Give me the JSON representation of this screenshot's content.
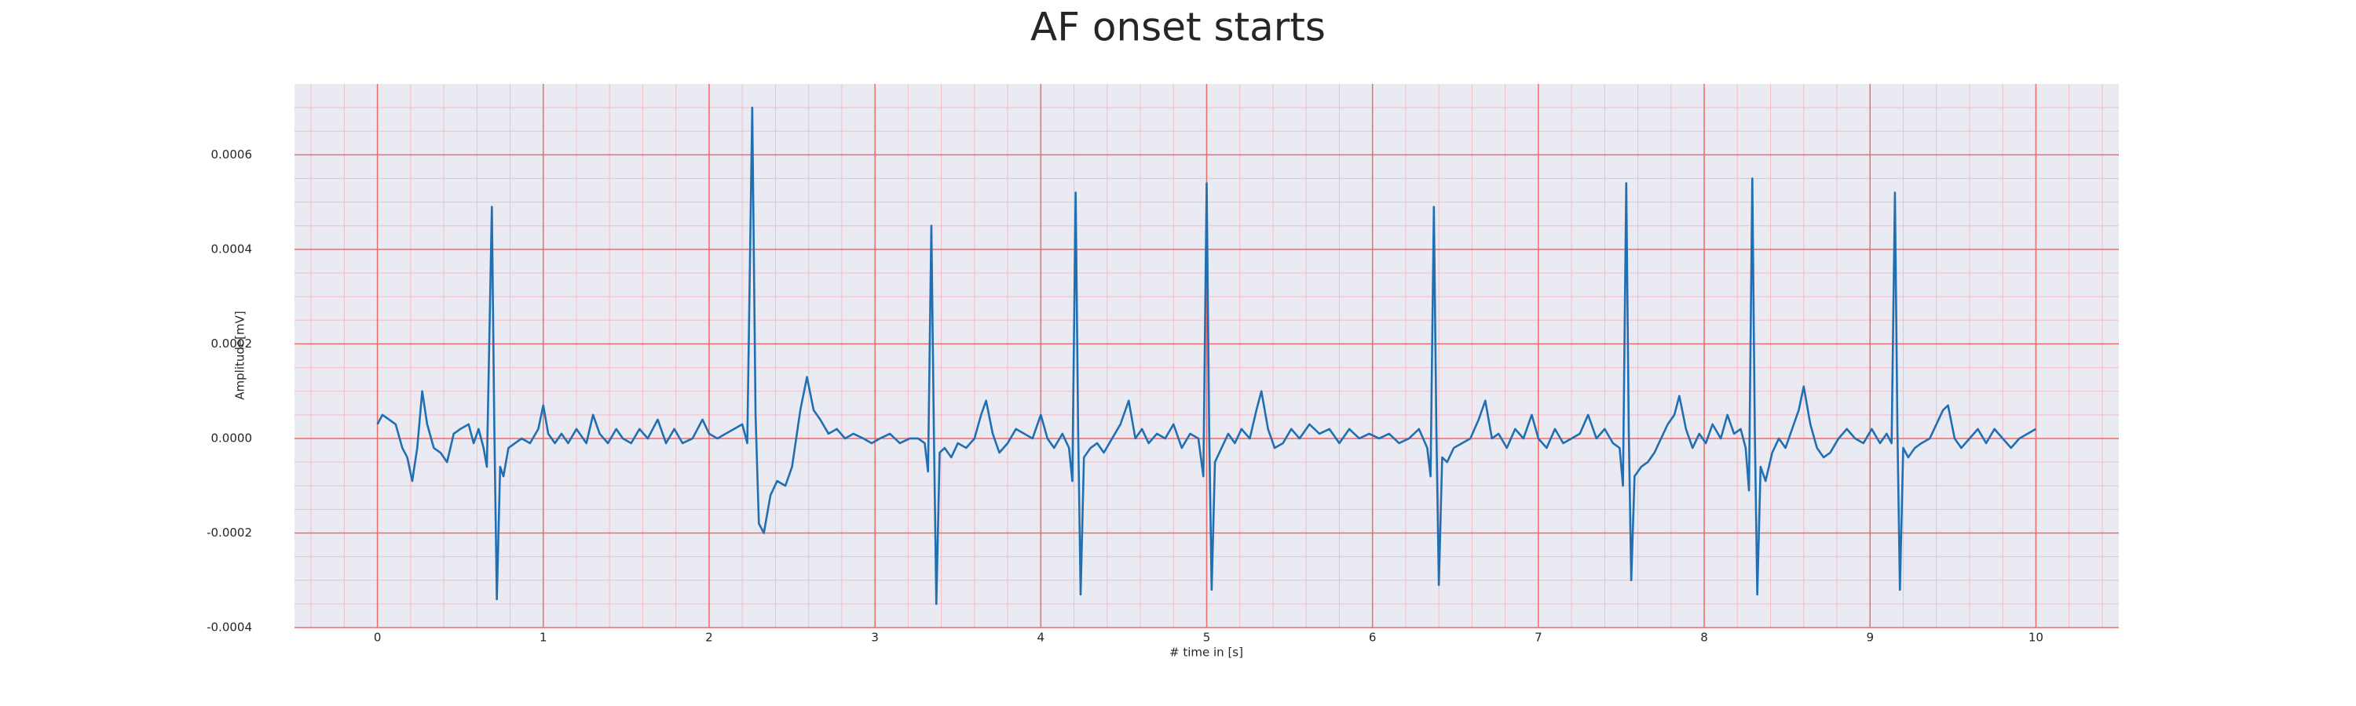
{
  "chart_data": {
    "type": "line",
    "title": "AF onset starts",
    "xlabel": "# time in [s]",
    "ylabel": "Amplitude[mV]",
    "xlim": [
      -0.5,
      10.5
    ],
    "ylim": [
      -0.0004,
      0.00075
    ],
    "xticks": [
      0,
      1,
      2,
      3,
      4,
      5,
      6,
      7,
      8,
      9,
      10
    ],
    "yticks": [
      -0.0004,
      -0.0002,
      {
        "value": 0,
        "label": "0.0000"
      },
      0.0002,
      0.0004,
      0.0006
    ],
    "xticks_minor": [
      -0.4,
      -0.2,
      0.2,
      0.4,
      0.6,
      0.8,
      1.2,
      1.4,
      1.6,
      1.8,
      2.2,
      2.4,
      2.6,
      2.8,
      3.2,
      3.4,
      3.6,
      3.8,
      4.2,
      4.4,
      4.6,
      4.8,
      5.2,
      5.4,
      5.6,
      5.8,
      6.2,
      6.4,
      6.6,
      6.8,
      7.2,
      7.4,
      7.6,
      7.8,
      8.2,
      8.4,
      8.6,
      8.8,
      9.2,
      9.4,
      9.6,
      9.8,
      10.2,
      10.4
    ],
    "yticks_minor": [
      -0.00035,
      -0.0003,
      -0.00025,
      -0.00015,
      -0.0001,
      -5e-05,
      5e-05,
      0.0001,
      0.00015,
      0.00025,
      0.0003,
      0.00035,
      0.00045,
      0.0005,
      0.00055,
      0.00065,
      0.0007
    ],
    "grid": true,
    "color": "#1f6fb2",
    "x": [
      0.0,
      0.03,
      0.07,
      0.11,
      0.15,
      0.18,
      0.21,
      0.24,
      0.27,
      0.3,
      0.34,
      0.38,
      0.42,
      0.46,
      0.5,
      0.55,
      0.58,
      0.61,
      0.64,
      0.66,
      0.69,
      0.705,
      0.72,
      0.74,
      0.76,
      0.79,
      0.83,
      0.87,
      0.92,
      0.97,
      1.0,
      1.03,
      1.07,
      1.11,
      1.15,
      1.2,
      1.26,
      1.3,
      1.34,
      1.39,
      1.44,
      1.48,
      1.53,
      1.58,
      1.63,
      1.69,
      1.74,
      1.79,
      1.84,
      1.9,
      1.96,
      2.0,
      2.05,
      2.1,
      2.15,
      2.2,
      2.23,
      2.26,
      2.28,
      2.3,
      2.33,
      2.37,
      2.41,
      2.46,
      2.5,
      2.55,
      2.59,
      2.63,
      2.67,
      2.72,
      2.77,
      2.82,
      2.87,
      2.93,
      2.98,
      3.03,
      3.09,
      3.15,
      3.21,
      3.26,
      3.3,
      3.32,
      3.34,
      3.355,
      3.37,
      3.39,
      3.42,
      3.46,
      3.5,
      3.55,
      3.6,
      3.64,
      3.67,
      3.71,
      3.75,
      3.8,
      3.85,
      3.9,
      3.95,
      4.0,
      4.04,
      4.08,
      4.13,
      4.17,
      4.19,
      4.21,
      4.225,
      4.24,
      4.26,
      4.3,
      4.34,
      4.38,
      4.43,
      4.48,
      4.53,
      4.57,
      4.61,
      4.65,
      4.7,
      4.75,
      4.8,
      4.85,
      4.9,
      4.95,
      4.98,
      5.0,
      5.015,
      5.03,
      5.05,
      5.09,
      5.13,
      5.17,
      5.21,
      5.26,
      5.3,
      5.33,
      5.37,
      5.41,
      5.46,
      5.51,
      5.56,
      5.62,
      5.68,
      5.74,
      5.8,
      5.86,
      5.92,
      5.98,
      6.04,
      6.1,
      6.16,
      6.22,
      6.28,
      6.33,
      6.35,
      6.37,
      6.385,
      6.4,
      6.42,
      6.45,
      6.49,
      6.54,
      6.59,
      6.64,
      6.68,
      6.72,
      6.76,
      6.81,
      6.86,
      6.91,
      6.96,
      7.0,
      7.05,
      7.1,
      7.15,
      7.2,
      7.25,
      7.3,
      7.35,
      7.4,
      7.45,
      7.49,
      7.51,
      7.53,
      7.545,
      7.56,
      7.58,
      7.62,
      7.66,
      7.7,
      7.74,
      7.78,
      7.82,
      7.85,
      7.89,
      7.93,
      7.97,
      8.01,
      8.05,
      8.1,
      8.14,
      8.18,
      8.22,
      8.25,
      8.27,
      8.29,
      8.305,
      8.32,
      8.34,
      8.37,
      8.41,
      8.45,
      8.49,
      8.53,
      8.57,
      8.6,
      8.64,
      8.68,
      8.72,
      8.76,
      8.81,
      8.86,
      8.91,
      8.96,
      9.01,
      9.06,
      9.1,
      9.13,
      9.15,
      9.165,
      9.18,
      9.2,
      9.23,
      9.27,
      9.31,
      9.36,
      9.4,
      9.44,
      9.47,
      9.51,
      9.55,
      9.6,
      9.65,
      9.7,
      9.75,
      9.8,
      9.85,
      9.9,
      9.95,
      10.0
    ],
    "values": [
      3e-05,
      5e-05,
      4e-05,
      3e-05,
      -2e-05,
      -4e-05,
      -9e-05,
      -2e-05,
      0.0001,
      3e-05,
      -2e-05,
      -3e-05,
      -5e-05,
      1e-05,
      2e-05,
      3e-05,
      -1e-05,
      2e-05,
      -2e-05,
      -6e-05,
      0.00049,
      2e-05,
      -0.00034,
      -6e-05,
      -8e-05,
      -2e-05,
      -1e-05,
      0,
      -1e-05,
      2e-05,
      7e-05,
      1e-05,
      -1e-05,
      1e-05,
      -1e-05,
      2e-05,
      -1e-05,
      5e-05,
      1e-05,
      -1e-05,
      2e-05,
      0,
      -1e-05,
      2e-05,
      0,
      4e-05,
      -1e-05,
      2e-05,
      -1e-05,
      0,
      4e-05,
      1e-05,
      0,
      1e-05,
      2e-05,
      3e-05,
      -1e-05,
      0.0007,
      5e-05,
      -0.00018,
      -0.0002,
      -0.00012,
      -9e-05,
      -0.0001,
      -6e-05,
      6e-05,
      0.00013,
      6e-05,
      4e-05,
      1e-05,
      2e-05,
      0,
      1e-05,
      0,
      -1e-05,
      0,
      1e-05,
      -1e-05,
      0,
      0,
      -1e-05,
      -7e-05,
      0.00045,
      2e-05,
      -0.00035,
      -3e-05,
      -2e-05,
      -4e-05,
      -1e-05,
      -2e-05,
      0,
      5e-05,
      8e-05,
      1e-05,
      -3e-05,
      -1e-05,
      2e-05,
      1e-05,
      0,
      5e-05,
      0,
      -2e-05,
      1e-05,
      -2e-05,
      -9e-05,
      0.00052,
      2e-05,
      -0.00033,
      -4e-05,
      -2e-05,
      -1e-05,
      -3e-05,
      0,
      3e-05,
      8e-05,
      0,
      2e-05,
      -1e-05,
      1e-05,
      0,
      3e-05,
      -2e-05,
      1e-05,
      0,
      -8e-05,
      0.00054,
      2e-05,
      -0.00032,
      -5e-05,
      -2e-05,
      1e-05,
      -1e-05,
      2e-05,
      0,
      6e-05,
      0.0001,
      2e-05,
      -2e-05,
      -1e-05,
      2e-05,
      0,
      3e-05,
      1e-05,
      2e-05,
      -1e-05,
      2e-05,
      0,
      1e-05,
      0,
      1e-05,
      -1e-05,
      0,
      2e-05,
      -2e-05,
      -8e-05,
      0.00049,
      2e-05,
      -0.00031,
      -4e-05,
      -5e-05,
      -2e-05,
      -1e-05,
      0,
      4e-05,
      8e-05,
      0,
      1e-05,
      -2e-05,
      2e-05,
      0,
      5e-05,
      0,
      -2e-05,
      2e-05,
      -1e-05,
      0,
      1e-05,
      5e-05,
      0,
      2e-05,
      -1e-05,
      -2e-05,
      -0.0001,
      0.00054,
      2e-05,
      -0.0003,
      -8e-05,
      -6e-05,
      -5e-05,
      -3e-05,
      0,
      3e-05,
      5e-05,
      9e-05,
      2e-05,
      -2e-05,
      1e-05,
      -1e-05,
      3e-05,
      0,
      5e-05,
      1e-05,
      2e-05,
      -2e-05,
      -0.00011,
      0.00055,
      2e-05,
      -0.00033,
      -6e-05,
      -9e-05,
      -3e-05,
      0,
      -2e-05,
      2e-05,
      6e-05,
      0.00011,
      3e-05,
      -2e-05,
      -4e-05,
      -3e-05,
      0,
      2e-05,
      0,
      -1e-05,
      2e-05,
      -1e-05,
      1e-05,
      -1e-05,
      0.00052,
      2e-05,
      -0.00032,
      -2e-05,
      -4e-05,
      -2e-05,
      -1e-05,
      0,
      3e-05,
      6e-05,
      7e-05,
      0,
      -2e-05,
      0,
      2e-05,
      -1e-05,
      2e-05,
      0,
      -2e-05,
      0,
      1e-05,
      2e-05
    ]
  }
}
